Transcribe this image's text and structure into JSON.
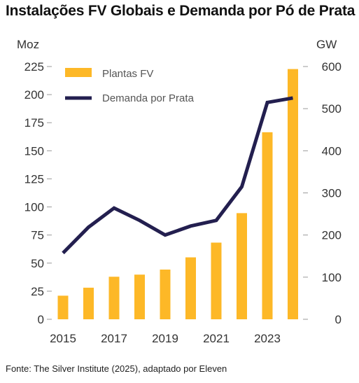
{
  "title": "Instalações FV Globais e Demanda por Pó de Prata",
  "source": "Fonte: The Silver Institute (2025), adaptado por Eleven",
  "chart_data": {
    "type": "bar",
    "title": "Instalações FV Globais e Demanda por Pó de Prata",
    "x": [
      2015,
      2016,
      2017,
      2018,
      2019,
      2020,
      2021,
      2022,
      2023,
      2024
    ],
    "x_tick_labels": [
      "2015",
      "2017",
      "2019",
      "2021",
      "2023"
    ],
    "left_axis": {
      "label": "Moz",
      "range": [
        0,
        225
      ],
      "ticks": [
        0,
        25,
        50,
        75,
        100,
        125,
        150,
        175,
        200,
        225
      ]
    },
    "right_axis": {
      "label": "GW",
      "range": [
        0,
        600
      ],
      "ticks": [
        0,
        100,
        200,
        300,
        400,
        500,
        600
      ]
    },
    "legend_position": "top-left",
    "grid": false,
    "series": [
      {
        "name": "Plantas FV",
        "kind": "bar",
        "axis": "right",
        "color": "#FDB827",
        "values": [
          56,
          75,
          101,
          106,
          118,
          147,
          182,
          252,
          444,
          594
        ]
      },
      {
        "name": "Demanda por Prata",
        "kind": "line",
        "axis": "left",
        "color": "#231F4F",
        "values": [
          59,
          82,
          99,
          88,
          75,
          83,
          88,
          118,
          193,
          197
        ]
      }
    ]
  }
}
